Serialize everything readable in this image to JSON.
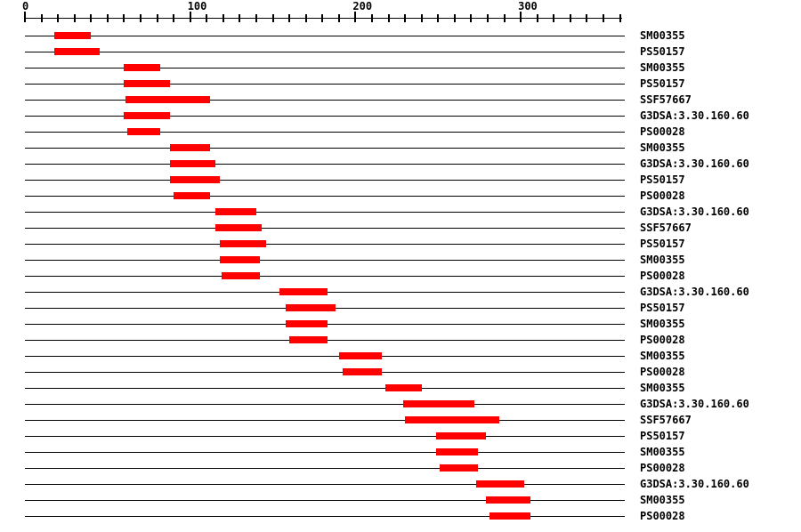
{
  "figure": {
    "background_color": "#ffffff",
    "line_color": "#000000",
    "text_color": "#000000",
    "bar_color": "#ff0000"
  },
  "chart_data": {
    "type": "bar",
    "variant": "protein-domain-track",
    "title": "",
    "xlabel": "",
    "ylabel": "",
    "grid": false,
    "legend": false,
    "axis": {
      "min": 0,
      "max": 360,
      "minor_step": 10,
      "major_step": 100,
      "major_ticks": [
        {
          "value": 0,
          "label": "0"
        },
        {
          "value": 100,
          "label": "100"
        },
        {
          "value": 200,
          "label": "200"
        },
        {
          "value": 300,
          "label": "300"
        }
      ]
    },
    "rows": [
      {
        "label": "SM00355",
        "start": 18,
        "end": 40
      },
      {
        "label": "PS50157",
        "start": 18,
        "end": 45
      },
      {
        "label": "SM00355",
        "start": 60,
        "end": 82
      },
      {
        "label": "PS50157",
        "start": 60,
        "end": 88
      },
      {
        "label": "SSF57667",
        "start": 61,
        "end": 112
      },
      {
        "label": "G3DSA:3.30.160.60",
        "start": 60,
        "end": 88
      },
      {
        "label": "PS00028",
        "start": 62,
        "end": 82
      },
      {
        "label": "SM00355",
        "start": 88,
        "end": 112
      },
      {
        "label": "G3DSA:3.30.160.60",
        "start": 88,
        "end": 115
      },
      {
        "label": "PS50157",
        "start": 88,
        "end": 118
      },
      {
        "label": "PS00028",
        "start": 90,
        "end": 112
      },
      {
        "label": "G3DSA:3.30.160.60",
        "start": 115,
        "end": 140
      },
      {
        "label": "SSF57667",
        "start": 115,
        "end": 143
      },
      {
        "label": "PS50157",
        "start": 118,
        "end": 146
      },
      {
        "label": "SM00355",
        "start": 118,
        "end": 142
      },
      {
        "label": "PS00028",
        "start": 119,
        "end": 142
      },
      {
        "label": "G3DSA:3.30.160.60",
        "start": 154,
        "end": 183
      },
      {
        "label": "PS50157",
        "start": 158,
        "end": 188
      },
      {
        "label": "SM00355",
        "start": 158,
        "end": 183
      },
      {
        "label": "PS00028",
        "start": 160,
        "end": 183
      },
      {
        "label": "SM00355",
        "start": 190,
        "end": 216
      },
      {
        "label": "PS00028",
        "start": 192,
        "end": 216
      },
      {
        "label": "SM00355",
        "start": 218,
        "end": 240
      },
      {
        "label": "G3DSA:3.30.160.60",
        "start": 229,
        "end": 272
      },
      {
        "label": "SSF57667",
        "start": 230,
        "end": 287
      },
      {
        "label": "PS50157",
        "start": 249,
        "end": 279
      },
      {
        "label": "SM00355",
        "start": 249,
        "end": 274
      },
      {
        "label": "PS00028",
        "start": 251,
        "end": 274
      },
      {
        "label": "G3DSA:3.30.160.60",
        "start": 273,
        "end": 302
      },
      {
        "label": "SM00355",
        "start": 279,
        "end": 306
      },
      {
        "label": "PS00028",
        "start": 281,
        "end": 306
      }
    ]
  }
}
